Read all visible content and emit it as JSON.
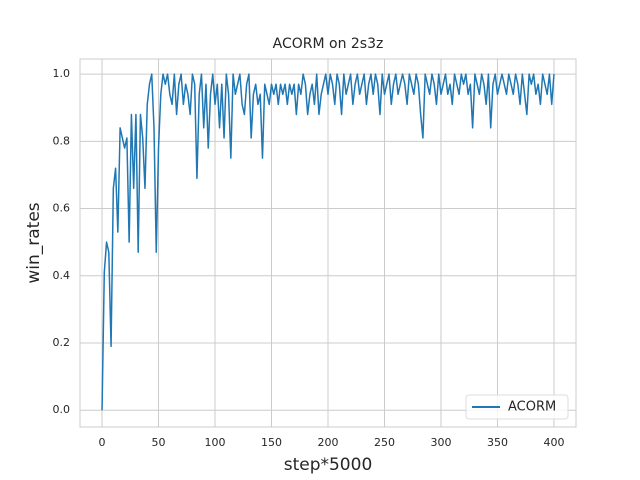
{
  "chart_data": {
    "type": "line",
    "title": "ACORM on 2s3z",
    "xlabel": "step*5000",
    "ylabel": "win_rates",
    "xlim": [
      -19.5,
      419.5
    ],
    "ylim": [
      -0.05,
      1.045
    ],
    "xticks": [
      0,
      50,
      100,
      150,
      200,
      250,
      300,
      350,
      400
    ],
    "yticks": [
      {
        "value": 0,
        "label": "0.0"
      },
      0.2,
      0.4,
      0.6,
      0.8,
      {
        "value": 1,
        "label": "1.0"
      }
    ],
    "grid": true,
    "legend": "lower right",
    "series": [
      {
        "name": "ACORM",
        "color": "#1f77b4",
        "x": [
          0,
          2,
          4,
          6,
          8,
          10,
          12,
          14,
          16,
          18,
          20,
          22,
          24,
          26,
          28,
          30,
          32,
          34,
          36,
          38,
          40,
          42,
          44,
          46,
          48,
          50,
          52,
          54,
          56,
          58,
          60,
          62,
          64,
          66,
          68,
          70,
          72,
          74,
          76,
          78,
          80,
          82,
          84,
          86,
          88,
          90,
          92,
          94,
          96,
          98,
          100,
          102,
          104,
          106,
          108,
          110,
          112,
          114,
          116,
          118,
          120,
          122,
          124,
          126,
          128,
          130,
          132,
          134,
          136,
          138,
          140,
          142,
          144,
          146,
          148,
          150,
          152,
          154,
          156,
          158,
          160,
          162,
          164,
          166,
          168,
          170,
          172,
          174,
          176,
          178,
          180,
          182,
          184,
          186,
          188,
          190,
          192,
          194,
          196,
          198,
          200,
          202,
          204,
          206,
          208,
          210,
          212,
          214,
          216,
          218,
          220,
          222,
          224,
          226,
          228,
          230,
          232,
          234,
          236,
          238,
          240,
          242,
          244,
          246,
          248,
          250,
          252,
          254,
          256,
          258,
          260,
          262,
          264,
          266,
          268,
          270,
          272,
          274,
          276,
          278,
          280,
          282,
          284,
          286,
          288,
          290,
          292,
          294,
          296,
          298,
          300,
          302,
          304,
          306,
          308,
          310,
          312,
          314,
          316,
          318,
          320,
          322,
          324,
          326,
          328,
          330,
          332,
          334,
          336,
          338,
          340,
          342,
          344,
          346,
          348,
          350,
          352,
          354,
          356,
          358,
          360,
          362,
          364,
          366,
          368,
          370,
          372,
          374,
          376,
          378,
          380,
          382,
          384,
          386,
          388,
          390,
          392,
          394,
          396,
          398,
          400
        ],
        "values": [
          0,
          0.41,
          0.5,
          0.47,
          0.19,
          0.66,
          0.72,
          0.53,
          0.84,
          0.81,
          0.78,
          0.81,
          0.5,
          0.88,
          0.66,
          0.88,
          0.47,
          0.88,
          0.81,
          0.66,
          0.91,
          0.97,
          1,
          0.84,
          0.47,
          0.78,
          0.94,
          1,
          0.97,
          1,
          0.94,
          0.91,
          1,
          0.88,
          0.97,
          1,
          0.91,
          0.97,
          0.94,
          0.88,
          1,
          0.97,
          0.69,
          0.94,
          1,
          0.84,
          0.97,
          0.78,
          0.94,
          1,
          0.91,
          0.97,
          0.84,
          0.97,
          0.81,
          1,
          0.94,
          0.75,
          1,
          0.94,
          0.97,
          1,
          0.91,
          0.88,
          0.97,
          1,
          0.81,
          0.94,
          0.97,
          0.91,
          0.94,
          0.75,
          0.97,
          0.94,
          0.91,
          0.97,
          0.94,
          0.97,
          0.91,
          0.97,
          0.94,
          0.97,
          0.91,
          0.97,
          0.94,
          0.97,
          0.88,
          0.97,
          0.94,
          1,
          0.97,
          0.88,
          0.94,
          0.97,
          0.91,
          1,
          0.88,
          0.94,
          0.97,
          1,
          0.94,
          1,
          0.97,
          0.91,
          1,
          0.97,
          0.88,
          1,
          0.94,
          0.97,
          1,
          0.91,
          0.97,
          1,
          0.94,
          0.97,
          1,
          0.91,
          0.97,
          1,
          0.94,
          1,
          0.97,
          0.88,
          1,
          0.94,
          0.97,
          1,
          0.91,
          0.97,
          1,
          0.94,
          0.97,
          1,
          0.97,
          0.91,
          1,
          0.97,
          0.94,
          1,
          0.97,
          0.88,
          0.81,
          1,
          0.97,
          0.94,
          1,
          0.97,
          0.91,
          1,
          0.94,
          0.97,
          1,
          0.94,
          0.97,
          0.91,
          1,
          0.97,
          0.94,
          1,
          0.97,
          1,
          0.94,
          0.97,
          0.84,
          1,
          0.97,
          0.94,
          1,
          0.97,
          0.91,
          1,
          0.84,
          0.97,
          1,
          0.94,
          0.97,
          1,
          0.97,
          0.94,
          1,
          0.97,
          0.94,
          1,
          0.97,
          0.91,
          1,
          0.94,
          0.88,
          1,
          0.97,
          1,
          0.94,
          0.97,
          0.91,
          1,
          0.97,
          0.94,
          1,
          0.91,
          1
        ]
      }
    ]
  }
}
